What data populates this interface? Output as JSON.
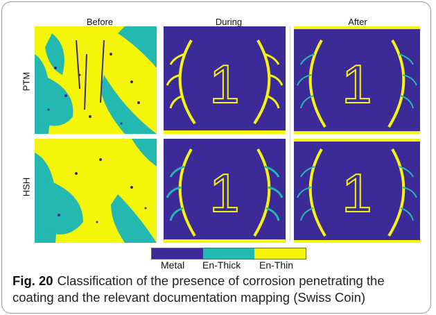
{
  "columns": [
    "Before",
    "During",
    "After"
  ],
  "rows": [
    "PTM",
    "HSH"
  ],
  "legend": [
    {
      "label": "Metal",
      "color": "#3b2a98"
    },
    {
      "label": "En-Thick",
      "color": "#23b8b0"
    },
    {
      "label": "En-Thin",
      "color": "#f5f50a"
    }
  ],
  "caption": {
    "label": "Fig. 20",
    "text": "Classification of the presence of corrosion penetrating the coating and the relevant documentation mapping (Swiss Coin)"
  },
  "coin_numeral": "1"
}
